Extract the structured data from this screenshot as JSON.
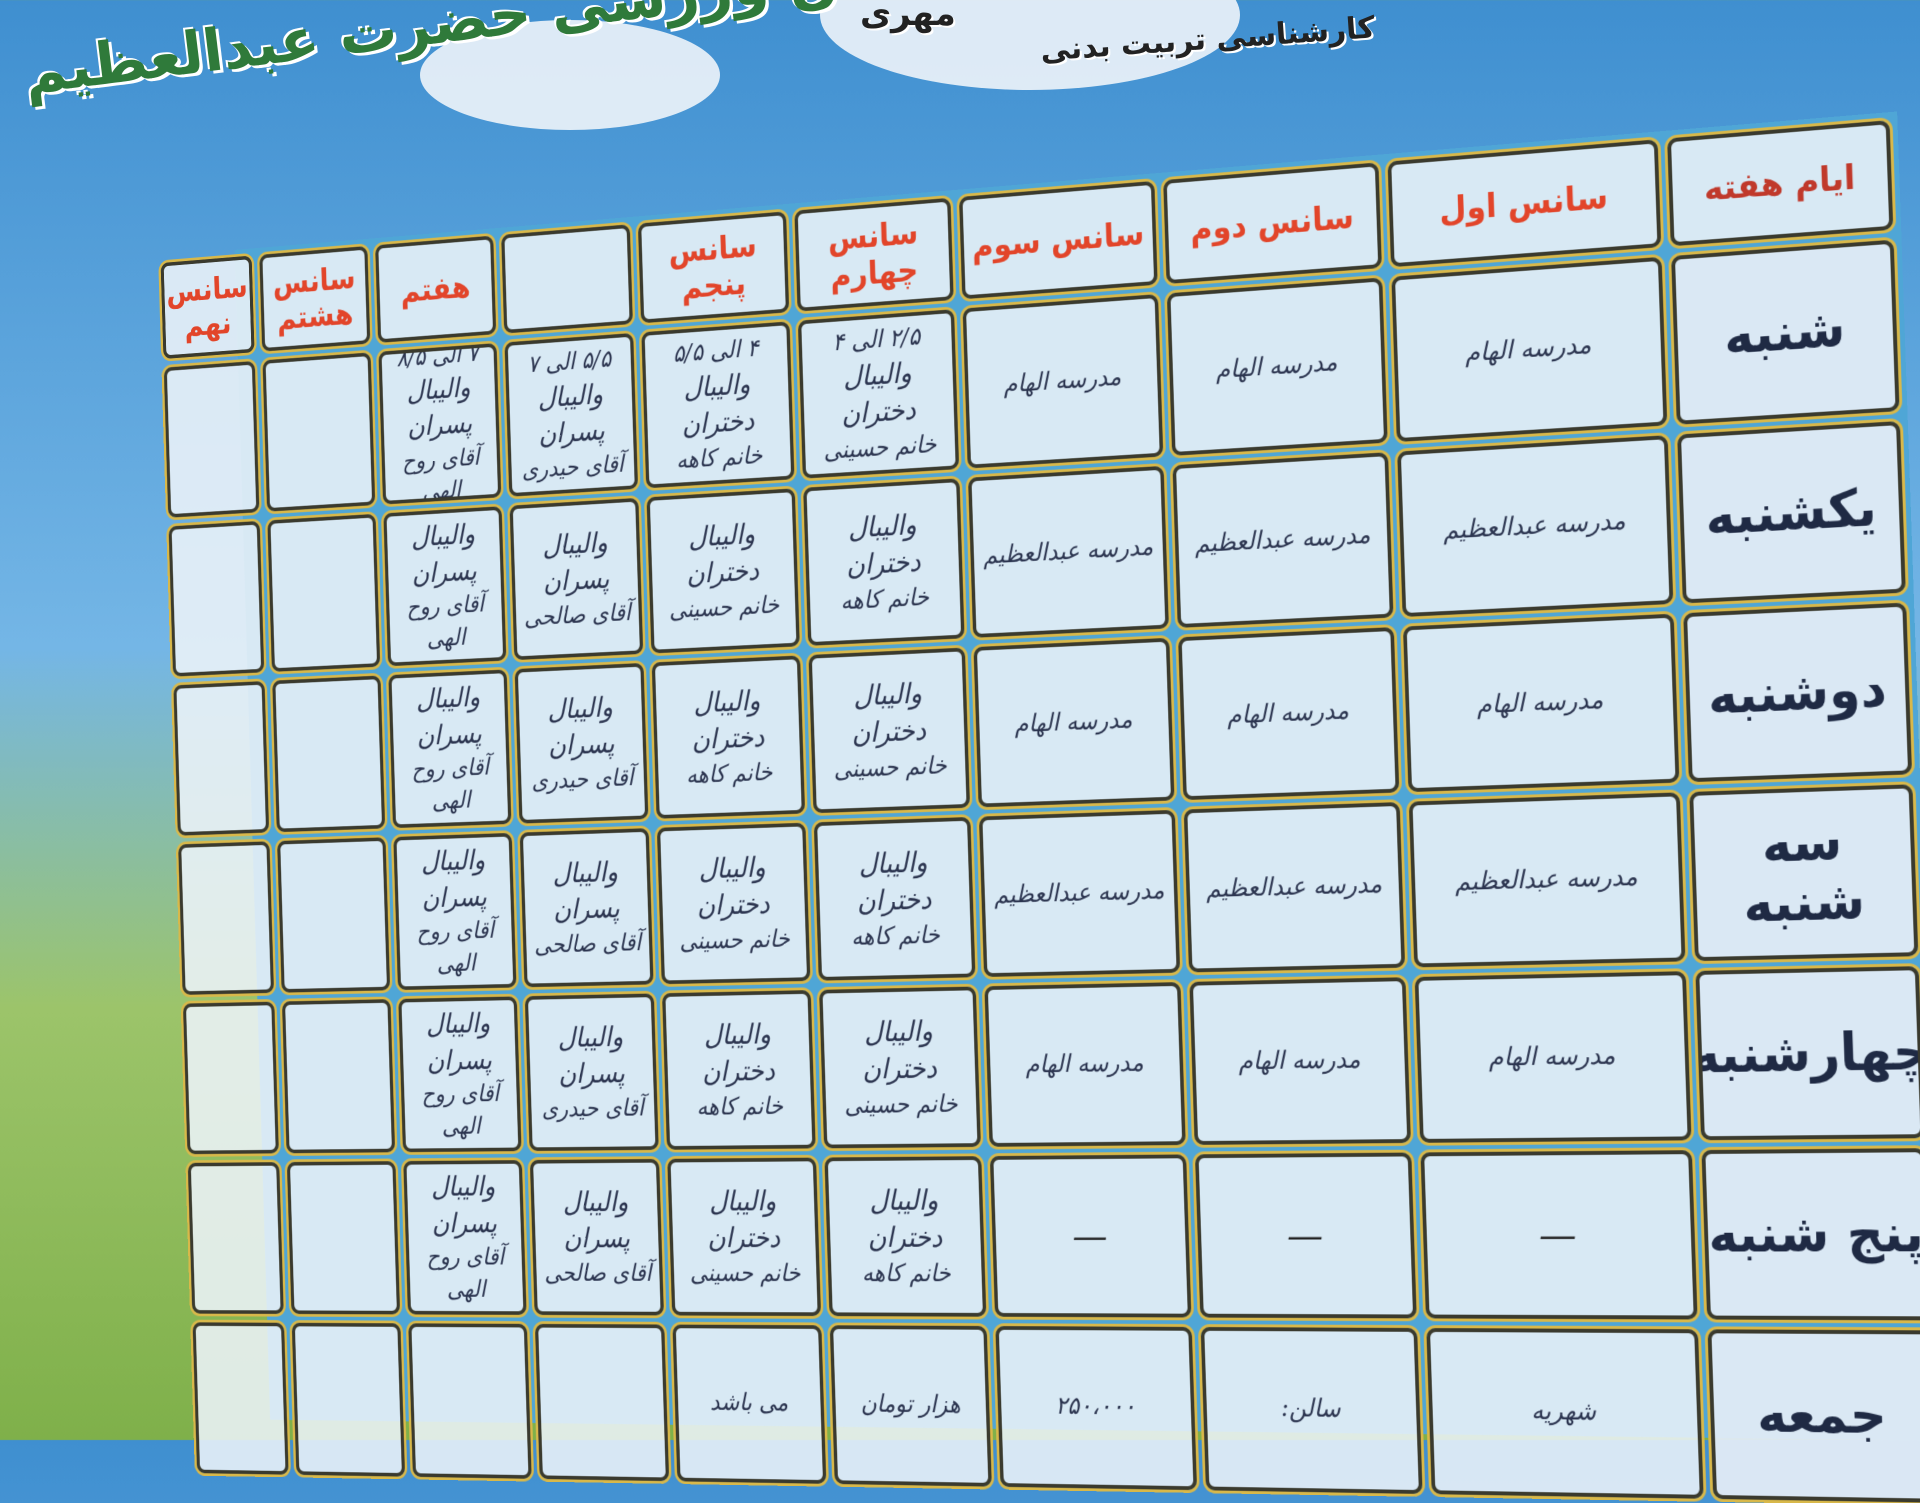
{
  "header": {
    "top_text": "مهری",
    "subtitle": "کارشناسی تربیت بدنی",
    "title": "سالن ورزشی حضرت عبدالعظیم"
  },
  "table": {
    "corner": "ایام هفته",
    "columns": [
      "سانس اول",
      "سانس دوم",
      "سانس سوم",
      "سانس چهارم",
      "سانس پنجم",
      "",
      "هفتم",
      "سانس هشتم",
      "سانس نهم"
    ],
    "rows": [
      {
        "day": "شنبه",
        "cells": [
          {
            "lines": [
              "مدرسه الهام"
            ]
          },
          {
            "lines": [
              "مدرسه الهام"
            ]
          },
          {
            "lines": [
              "مدرسه الهام"
            ]
          },
          {
            "lines": [
              "۲/۵ الی ۴",
              "والیبال دختران",
              "خانم حسینی"
            ]
          },
          {
            "lines": [
              "۴ الی ۵/۵",
              "والیبال دختران",
              "خانم کاهه"
            ]
          },
          {
            "lines": [
              "۵/۵ الی ۷",
              "والیبال پسران",
              "آقای حیدری"
            ]
          },
          {
            "lines": [
              "۷ الی ۸/۵",
              "والیبال پسران",
              "آقای روح الهی"
            ]
          },
          {
            "lines": []
          },
          {
            "lines": []
          }
        ]
      },
      {
        "day": "یکشنبه",
        "cells": [
          {
            "lines": [
              "مدرسه عبدالعظیم"
            ]
          },
          {
            "lines": [
              "مدرسه عبدالعظیم"
            ]
          },
          {
            "lines": [
              "مدرسه عبدالعظیم"
            ]
          },
          {
            "lines": [
              "والیبال دختران",
              "خانم کاهه"
            ]
          },
          {
            "lines": [
              "والیبال دختران",
              "خانم حسینی"
            ]
          },
          {
            "lines": [
              "والیبال پسران",
              "آقای صالحی"
            ]
          },
          {
            "lines": [
              "والیبال پسران",
              "آقای روح الهی"
            ]
          },
          {
            "lines": []
          },
          {
            "lines": []
          }
        ]
      },
      {
        "day": "دوشنبه",
        "cells": [
          {
            "lines": [
              "مدرسه الهام"
            ]
          },
          {
            "lines": [
              "مدرسه الهام"
            ]
          },
          {
            "lines": [
              "مدرسه الهام"
            ]
          },
          {
            "lines": [
              "والیبال دختران",
              "خانم حسینی"
            ]
          },
          {
            "lines": [
              "والیبال دختران",
              "خانم کاهه"
            ]
          },
          {
            "lines": [
              "والیبال پسران",
              "آقای حیدری"
            ]
          },
          {
            "lines": [
              "والیبال پسران",
              "آقای روح الهی"
            ]
          },
          {
            "lines": []
          },
          {
            "lines": []
          }
        ]
      },
      {
        "day": "سه شنبه",
        "cells": [
          {
            "lines": [
              "مدرسه عبدالعظیم"
            ]
          },
          {
            "lines": [
              "مدرسه عبدالعظیم"
            ]
          },
          {
            "lines": [
              "مدرسه عبدالعظیم"
            ]
          },
          {
            "lines": [
              "والیبال دختران",
              "خانم کاهه"
            ]
          },
          {
            "lines": [
              "والیبال دختران",
              "خانم حسینی"
            ]
          },
          {
            "lines": [
              "والیبال پسران",
              "آقای صالحی"
            ]
          },
          {
            "lines": [
              "والیبال پسران",
              "آقای روح الهی"
            ]
          },
          {
            "lines": []
          },
          {
            "lines": []
          }
        ]
      },
      {
        "day": "چهارشنبه",
        "cells": [
          {
            "lines": [
              "مدرسه الهام"
            ]
          },
          {
            "lines": [
              "مدرسه الهام"
            ]
          },
          {
            "lines": [
              "مدرسه الهام"
            ]
          },
          {
            "lines": [
              "والیبال دختران",
              "خانم حسینی"
            ]
          },
          {
            "lines": [
              "والیبال دختران",
              "خانم کاهه"
            ]
          },
          {
            "lines": [
              "والیبال پسران",
              "آقای حیدری"
            ]
          },
          {
            "lines": [
              "والیبال پسران",
              "آقای روح الهی"
            ]
          },
          {
            "lines": []
          },
          {
            "lines": []
          }
        ]
      },
      {
        "day": "پنج شنبه",
        "cells": [
          {
            "lines": [
              "—"
            ]
          },
          {
            "lines": [
              "—"
            ]
          },
          {
            "lines": [
              "—"
            ]
          },
          {
            "lines": [
              "والیبال دختران",
              "خانم کاهه"
            ]
          },
          {
            "lines": [
              "والیبال دختران",
              "خانم حسینی"
            ]
          },
          {
            "lines": [
              "والیبال پسران",
              "آقای صالحی"
            ]
          },
          {
            "lines": [
              "والیبال پسران",
              "آقای روح الهی"
            ]
          },
          {
            "lines": []
          },
          {
            "lines": []
          }
        ]
      },
      {
        "day": "جمعه",
        "cells": [
          {
            "lines": [
              "شهریه"
            ]
          },
          {
            "lines": [
              "سالن:"
            ]
          },
          {
            "lines": [
              "۲۵۰،۰۰۰"
            ]
          },
          {
            "lines": [
              "هزار تومان"
            ]
          },
          {
            "lines": [
              "می باشد"
            ]
          },
          {
            "lines": []
          },
          {
            "lines": []
          },
          {
            "lines": []
          },
          {
            "lines": []
          }
        ]
      }
    ]
  }
}
